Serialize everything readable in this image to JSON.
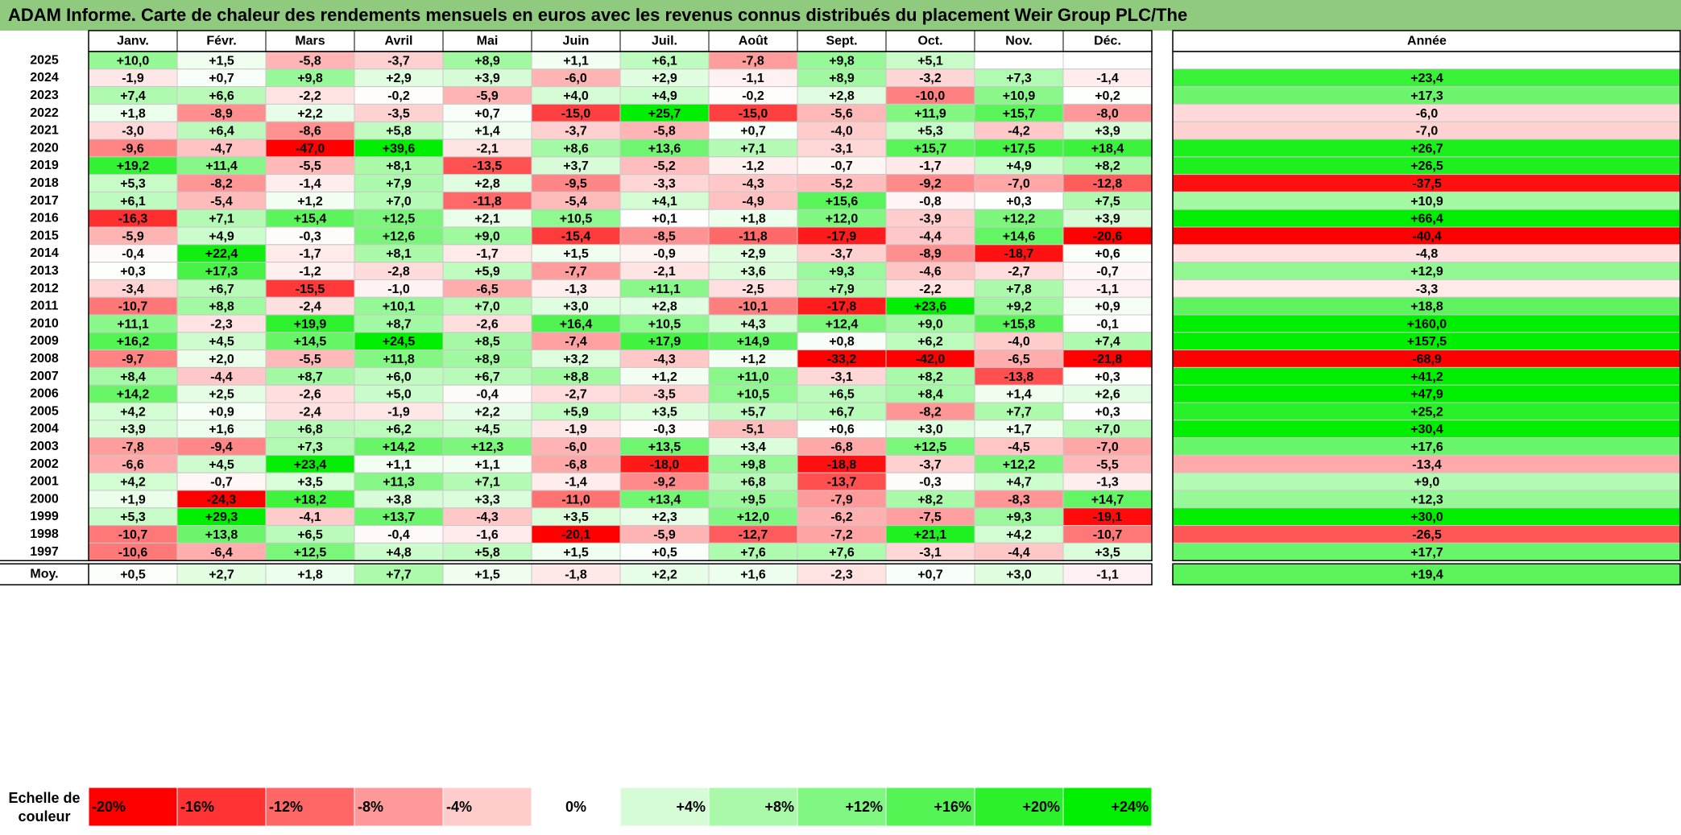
{
  "title": "ADAM Informe. Carte de chaleur des rendements mensuels en euros avec les revenus connus distribués du placement Weir Group PLC/The",
  "chart_data": {
    "type": "heatmap",
    "months": [
      "Janv.",
      "Févr.",
      "Mars",
      "Avril",
      "Mai",
      "Juin",
      "Juil.",
      "Août",
      "Sept.",
      "Oct.",
      "Nov.",
      "Déc."
    ],
    "year_header": "Année",
    "rows": [
      {
        "year": "2025",
        "values": [
          "+10,0",
          "+1,5",
          "-5,8",
          "-3,7",
          "+8,9",
          "+1,1",
          "+6,1",
          "-7,8",
          "+9,8",
          "+5,1",
          "",
          ""
        ],
        "annual": ""
      },
      {
        "year": "2024",
        "values": [
          "-1,9",
          "+0,7",
          "+9,8",
          "+2,9",
          "+3,9",
          "-6,0",
          "+2,9",
          "-1,1",
          "+8,9",
          "-3,2",
          "+7,3",
          "-1,4"
        ],
        "annual": "+23,4"
      },
      {
        "year": "2023",
        "values": [
          "+7,4",
          "+6,6",
          "-2,2",
          "-0,2",
          "-5,9",
          "+4,0",
          "+4,9",
          "-0,2",
          "+2,8",
          "-10,0",
          "+10,9",
          "+0,2"
        ],
        "annual": "+17,3"
      },
      {
        "year": "2022",
        "values": [
          "+1,8",
          "-8,9",
          "+2,2",
          "-3,5",
          "+0,7",
          "-15,0",
          "+25,7",
          "-15,0",
          "-5,6",
          "+11,9",
          "+15,7",
          "-8,0"
        ],
        "annual": "-6,0"
      },
      {
        "year": "2021",
        "values": [
          "-3,0",
          "+6,4",
          "-8,6",
          "+5,8",
          "+1,4",
          "-3,7",
          "-5,8",
          "+0,7",
          "-4,0",
          "+5,3",
          "-4,2",
          "+3,9"
        ],
        "annual": "-7,0"
      },
      {
        "year": "2020",
        "values": [
          "-9,6",
          "-4,7",
          "-47,0",
          "+39,6",
          "-2,1",
          "+8,6",
          "+13,6",
          "+7,1",
          "-3,1",
          "+15,7",
          "+17,5",
          "+18,4"
        ],
        "annual": "+26,7"
      },
      {
        "year": "2019",
        "values": [
          "+19,2",
          "+11,4",
          "-5,5",
          "+8,1",
          "-13,5",
          "+3,7",
          "-5,2",
          "-1,2",
          "-0,7",
          "-1,7",
          "+4,9",
          "+8,2"
        ],
        "annual": "+26,5"
      },
      {
        "year": "2018",
        "values": [
          "+5,3",
          "-8,2",
          "-1,4",
          "+7,9",
          "+2,8",
          "-9,5",
          "-3,3",
          "-4,3",
          "-5,2",
          "-9,2",
          "-7,0",
          "-12,8"
        ],
        "annual": "-37,5"
      },
      {
        "year": "2017",
        "values": [
          "+6,1",
          "-5,4",
          "+1,2",
          "+7,0",
          "-11,8",
          "-5,4",
          "+4,1",
          "-4,9",
          "+15,6",
          "-0,8",
          "+0,3",
          "+7,5"
        ],
        "annual": "+10,9"
      },
      {
        "year": "2016",
        "values": [
          "-16,3",
          "+7,1",
          "+15,4",
          "+12,5",
          "+2,1",
          "+10,5",
          "+0,1",
          "+1,8",
          "+12,0",
          "-3,9",
          "+12,2",
          "+3,9"
        ],
        "annual": "+66,4"
      },
      {
        "year": "2015",
        "values": [
          "-5,9",
          "+4,9",
          "-0,3",
          "+12,6",
          "+9,0",
          "-15,4",
          "-8,5",
          "-11,8",
          "-17,9",
          "-4,4",
          "+14,6",
          "-20,6"
        ],
        "annual": "-40,4"
      },
      {
        "year": "2014",
        "values": [
          "-0,4",
          "+22,4",
          "-1,7",
          "+8,1",
          "-1,7",
          "+1,5",
          "-0,9",
          "+2,9",
          "-3,7",
          "-8,9",
          "-18,7",
          "+0,6"
        ],
        "annual": "-4,8"
      },
      {
        "year": "2013",
        "values": [
          "+0,3",
          "+17,3",
          "-1,2",
          "-2,8",
          "+5,9",
          "-7,7",
          "-2,1",
          "+3,6",
          "+9,3",
          "-4,6",
          "-2,7",
          "-0,7"
        ],
        "annual": "+12,9"
      },
      {
        "year": "2012",
        "values": [
          "-3,4",
          "+6,7",
          "-15,5",
          "-1,0",
          "-6,5",
          "-1,3",
          "+11,1",
          "-2,5",
          "+7,9",
          "-2,2",
          "+7,8",
          "-1,1"
        ],
        "annual": "-3,3"
      },
      {
        "year": "2011",
        "values": [
          "-10,7",
          "+8,8",
          "-2,4",
          "+10,1",
          "+7,0",
          "+3,0",
          "+2,8",
          "-10,1",
          "-17,8",
          "+23,6",
          "+9,2",
          "+0,9"
        ],
        "annual": "+18,8"
      },
      {
        "year": "2010",
        "values": [
          "+11,1",
          "-2,3",
          "+19,9",
          "+8,7",
          "-2,6",
          "+16,4",
          "+10,5",
          "+4,3",
          "+12,4",
          "+9,0",
          "+15,8",
          "-0,1"
        ],
        "annual": "+160,0"
      },
      {
        "year": "2009",
        "values": [
          "+16,2",
          "+4,5",
          "+14,5",
          "+24,5",
          "+8,5",
          "-7,4",
          "+17,9",
          "+14,9",
          "+0,8",
          "+6,2",
          "-4,0",
          "+7,4"
        ],
        "annual": "+157,5"
      },
      {
        "year": "2008",
        "values": [
          "-9,7",
          "+2,0",
          "-5,5",
          "+11,8",
          "+8,9",
          "+3,2",
          "-4,3",
          "+1,2",
          "-33,2",
          "-42,0",
          "-6,5",
          "-21,8"
        ],
        "annual": "-68,9"
      },
      {
        "year": "2007",
        "values": [
          "+8,4",
          "-4,4",
          "+8,7",
          "+6,0",
          "+6,7",
          "+8,8",
          "+1,2",
          "+11,0",
          "-3,1",
          "+8,2",
          "-13,8",
          "+0,3"
        ],
        "annual": "+41,2"
      },
      {
        "year": "2006",
        "values": [
          "+14,2",
          "+2,5",
          "-2,6",
          "+5,0",
          "-0,4",
          "-2,7",
          "-3,5",
          "+10,5",
          "+6,5",
          "+8,4",
          "+1,4",
          "+2,6"
        ],
        "annual": "+47,9"
      },
      {
        "year": "2005",
        "values": [
          "+4,2",
          "+0,9",
          "-2,4",
          "-1,9",
          "+2,2",
          "+5,9",
          "+3,5",
          "+5,7",
          "+6,7",
          "-8,2",
          "+7,7",
          "+0,3"
        ],
        "annual": "+25,2"
      },
      {
        "year": "2004",
        "values": [
          "+3,9",
          "+1,6",
          "+6,8",
          "+6,2",
          "+4,5",
          "-1,9",
          "-0,3",
          "-5,1",
          "+0,6",
          "+3,0",
          "+1,7",
          "+7,0"
        ],
        "annual": "+30,4"
      },
      {
        "year": "2003",
        "values": [
          "-7,8",
          "-9,4",
          "+7,3",
          "+14,2",
          "+12,3",
          "-6,0",
          "+13,5",
          "+3,4",
          "-6,8",
          "+12,5",
          "-4,5",
          "-7,0"
        ],
        "annual": "+17,6"
      },
      {
        "year": "2002",
        "values": [
          "-6,6",
          "+4,5",
          "+23,4",
          "+1,1",
          "+1,1",
          "-6,8",
          "-18,0",
          "+9,8",
          "-18,8",
          "-3,7",
          "+12,2",
          "-5,5"
        ],
        "annual": "-13,4"
      },
      {
        "year": "2001",
        "values": [
          "+4,2",
          "-0,7",
          "+3,5",
          "+11,3",
          "+7,1",
          "-1,4",
          "-9,2",
          "+6,8",
          "-13,7",
          "-0,3",
          "+4,7",
          "-1,3"
        ],
        "annual": "+9,0"
      },
      {
        "year": "2000",
        "values": [
          "+1,9",
          "-24,3",
          "+18,2",
          "+3,8",
          "+3,3",
          "-11,0",
          "+13,4",
          "+9,5",
          "-7,9",
          "+8,2",
          "-8,3",
          "+14,7"
        ],
        "annual": "+12,3"
      },
      {
        "year": "1999",
        "values": [
          "+5,3",
          "+29,3",
          "-4,1",
          "+13,7",
          "-4,3",
          "+3,5",
          "+2,3",
          "+12,0",
          "-6,2",
          "-7,5",
          "+9,3",
          "-19,1"
        ],
        "annual": "+30,0"
      },
      {
        "year": "1998",
        "values": [
          "-10,7",
          "+13,8",
          "+6,5",
          "-0,4",
          "-1,6",
          "-20,1",
          "-5,9",
          "-12,7",
          "-7,2",
          "+21,1",
          "+4,2",
          "-10,7"
        ],
        "annual": "-26,5"
      },
      {
        "year": "1997",
        "values": [
          "-10,6",
          "-6,4",
          "+12,5",
          "+4,8",
          "+5,8",
          "+1,5",
          "+0,5",
          "+7,6",
          "+7,6",
          "-3,1",
          "-4,4",
          "+3,5"
        ],
        "annual": "+17,7"
      }
    ],
    "average": {
      "label": "Moy.",
      "values": [
        "+0,5",
        "+2,7",
        "+1,8",
        "+7,7",
        "+1,5",
        "-1,8",
        "+2,2",
        "+1,6",
        "-2,3",
        "+0,7",
        "+3,0",
        "-1,1"
      ],
      "annual": "+19,4"
    },
    "scale": {
      "label_line1": "Echelle de",
      "label_line2": "couleur",
      "labels": [
        "-20%",
        "-16%",
        "-12%",
        "-8%",
        "-4%",
        "0%",
        "+4%",
        "+8%",
        "+12%",
        "+16%",
        "+20%",
        "+24%"
      ],
      "values": [
        -20,
        -16,
        -12,
        -8,
        -4,
        0,
        4,
        8,
        12,
        16,
        20,
        24
      ]
    },
    "colors": {
      "negative": "#ff0000",
      "positive": "#00ee00",
      "neutral": "#ffffff",
      "title_bar": "#8fca7e"
    }
  }
}
